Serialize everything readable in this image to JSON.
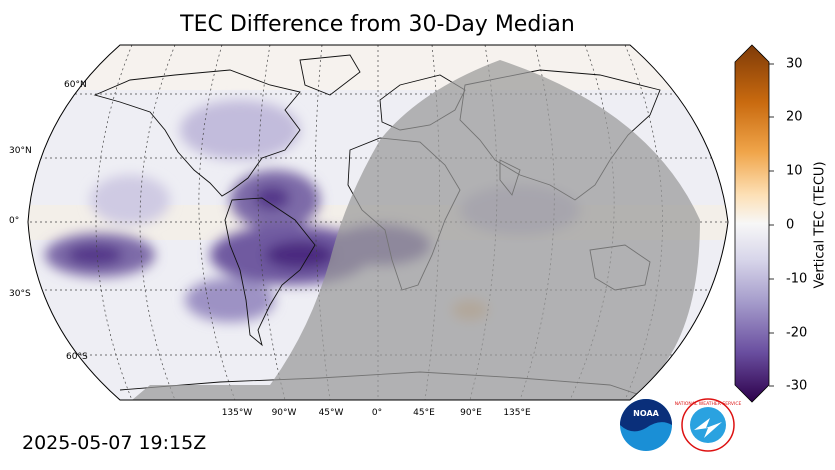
{
  "title": "TEC Difference from 30-Day Median",
  "timestamp": "2025-05-07 19:15Z",
  "map": {
    "projection": "robinson",
    "night_shading": true,
    "latitude_labels": [
      "60°N",
      "30°N",
      "0°",
      "30°S",
      "60°S"
    ],
    "longitude_labels": [
      "135°W",
      "90°W",
      "45°W",
      "0°",
      "45°E",
      "90°E",
      "135°E"
    ]
  },
  "colorbar": {
    "label": "Vertical TEC (TECU)",
    "ticks": [
      "30",
      "20",
      "10",
      "0",
      "-10",
      "-20",
      "-30"
    ],
    "range": [
      -30,
      30
    ],
    "colormap": "PuOr_r",
    "colors": {
      "max": "#7f3b08",
      "high": "#e08214",
      "light_high": "#fdb863",
      "zero": "#f7f7f7",
      "light_low": "#b2abd2",
      "low": "#8073ac",
      "min": "#2d004b"
    }
  },
  "logos": {
    "noaa": "NOAA",
    "nws": "NATIONAL WEATHER SERVICE"
  }
}
